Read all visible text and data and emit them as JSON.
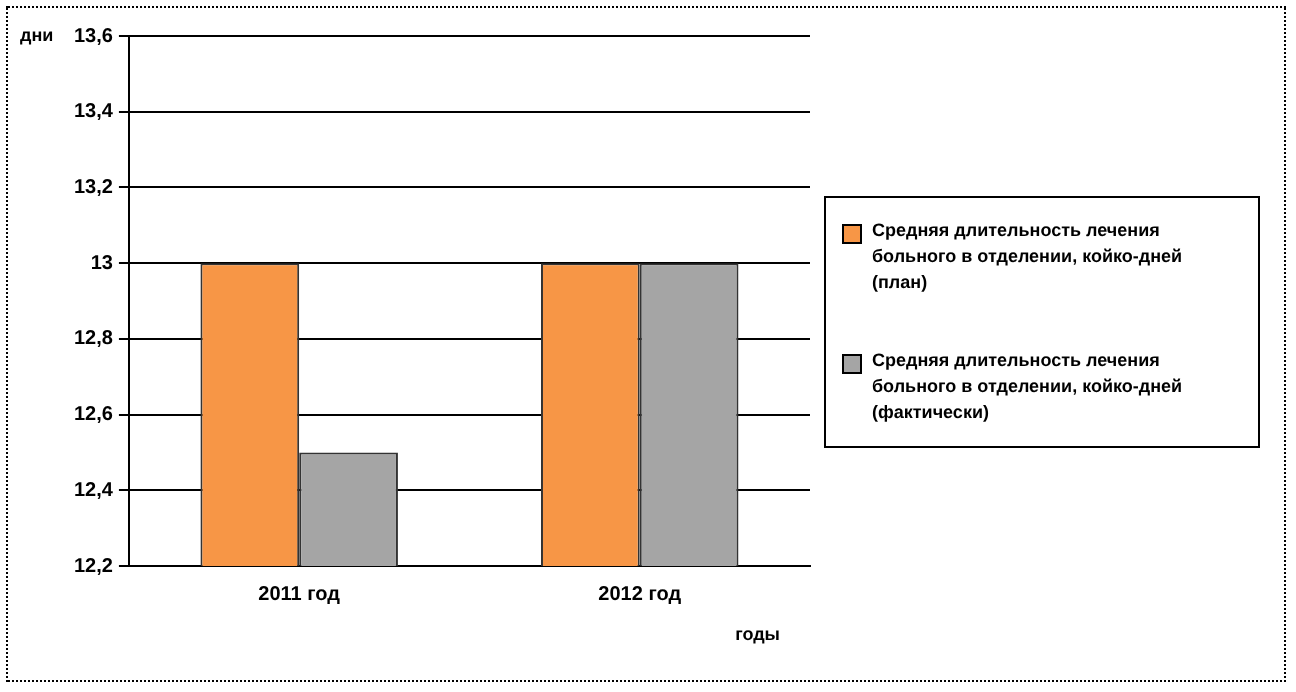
{
  "chart_data": {
    "type": "bar",
    "ylabel": "дни",
    "xlabel": "годы",
    "categories": [
      "2011 год",
      "2012 год"
    ],
    "series": [
      {
        "name": "Средняя длительность лечения больного в отделении, койко-дней (план)",
        "color": "#f79646",
        "values": [
          13,
          13
        ]
      },
      {
        "name": "Средняя длительность лечения больного в отделении, койко-дней (фактически)",
        "color": "#a5a5a5",
        "values": [
          12.5,
          13
        ]
      }
    ],
    "ylim": [
      12.2,
      13.6
    ],
    "yticks": [
      {
        "value": 12.2,
        "label": "12,2"
      },
      {
        "value": 12.4,
        "label": "12,4"
      },
      {
        "value": 12.6,
        "label": "12,6"
      },
      {
        "value": 12.8,
        "label": "12,8"
      },
      {
        "value": 13,
        "label": "13"
      },
      {
        "value": 13.2,
        "label": "13,2"
      },
      {
        "value": 13.4,
        "label": "13,4"
      },
      {
        "value": 13.6,
        "label": "13,6"
      }
    ],
    "grid": "y",
    "legend": "right"
  }
}
